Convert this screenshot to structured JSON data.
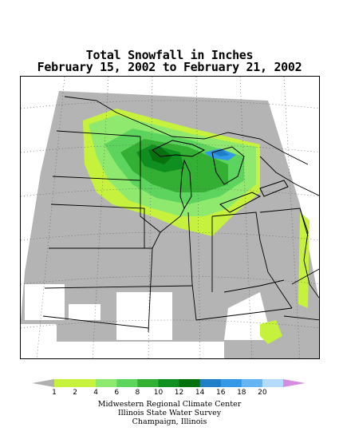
{
  "title": {
    "line1": "Total Snowfall in Inches",
    "line2": "February 15, 2002 to February 21, 2002"
  },
  "legend": {
    "classes": [
      {
        "label": "1",
        "color": "#c6f23d"
      },
      {
        "label": "2",
        "color": "#c6f23d"
      },
      {
        "label": "4",
        "color": "#8fe96e"
      },
      {
        "label": "6",
        "color": "#5dd45d"
      },
      {
        "label": "8",
        "color": "#33b033"
      },
      {
        "label": "10",
        "color": "#0f8f1f"
      },
      {
        "label": "12",
        "color": "#07700f"
      },
      {
        "label": "14",
        "color": "#1e7ec8"
      },
      {
        "label": "16",
        "color": "#3399e6"
      },
      {
        "label": "18",
        "color": "#66b5f2"
      },
      {
        "label": "20",
        "color": "#b5dcff"
      }
    ],
    "low_color": "#b0b0b0",
    "high_color": "#d58ce0",
    "no_data_color": "#b4b4b4"
  },
  "credits": {
    "line1": "Midwestern Regional Climate Center",
    "line2": "Illinois State Water Survey",
    "line3": "Champaign, Illinois"
  }
}
